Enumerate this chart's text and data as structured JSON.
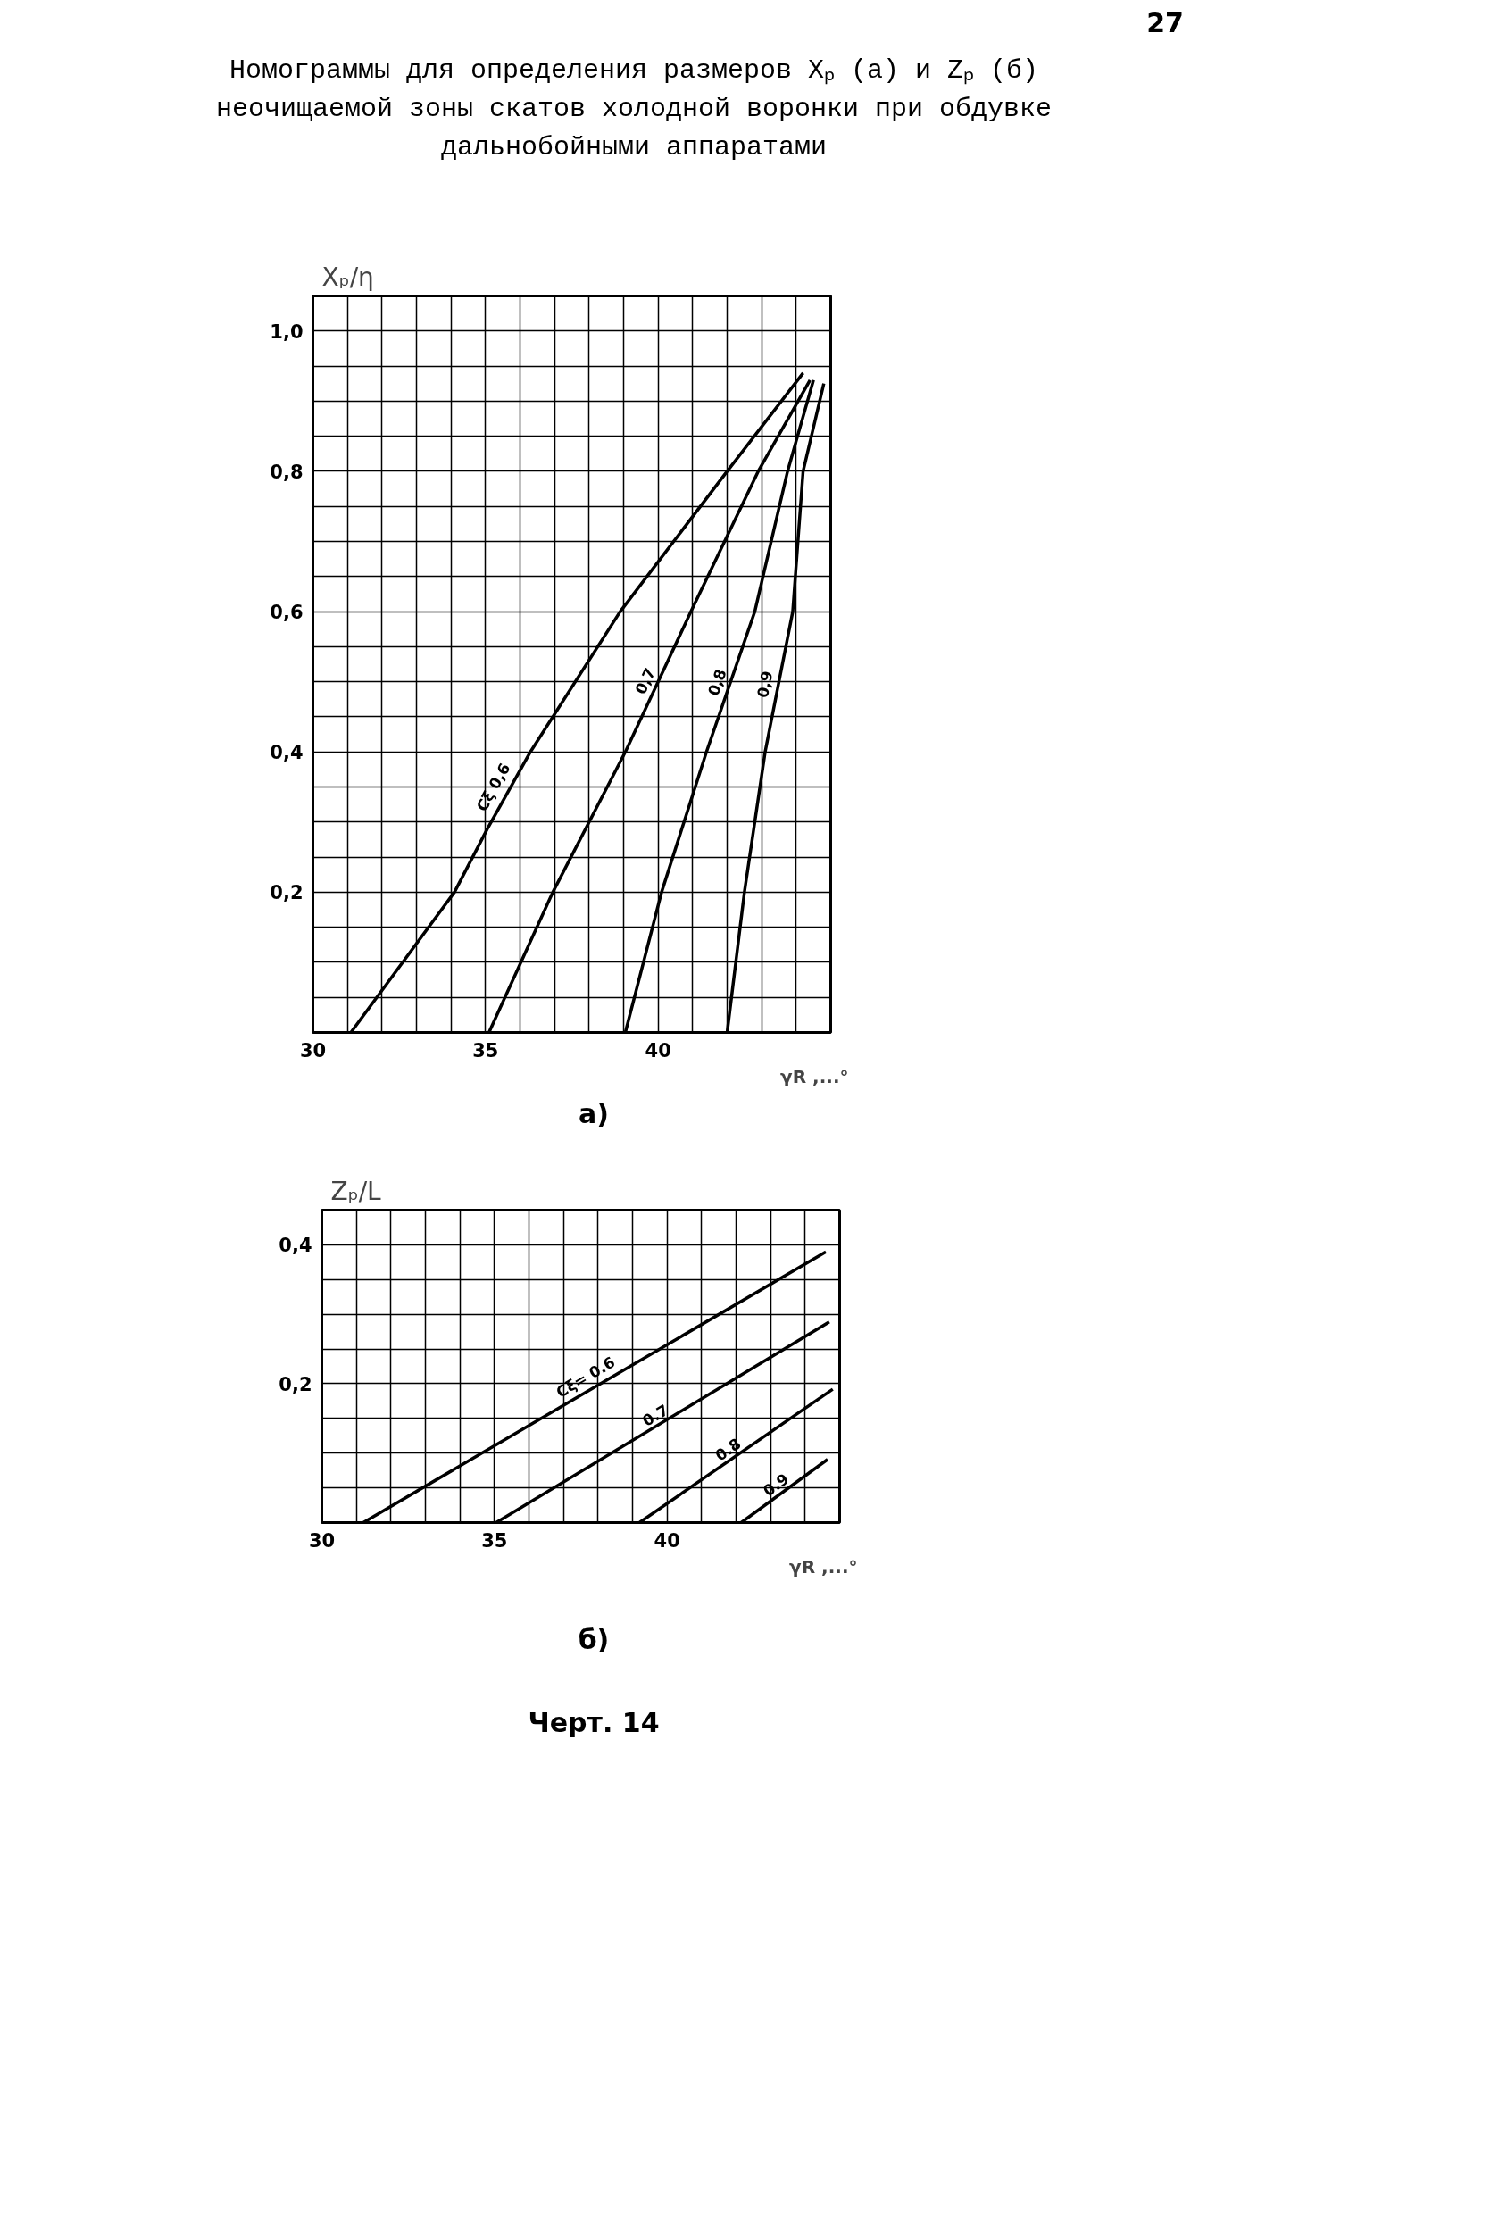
{
  "chart_data": [
    {
      "type": "line",
      "title": "Номограммы для определения размеров Xₚ (а) и Zₚ (б)\nнеочищаемой зоны скатов холодной воронки при обдувке\nдальнобойными аппаратами",
      "xlabel": "γR ,...°",
      "ylabel": "Xₚ/η",
      "annotations": [
        "27",
        "а)"
      ],
      "xlim": [
        30,
        45
      ],
      "ylim": [
        0,
        1.05
      ],
      "xticks": [
        30,
        {
          "value": 31,
          "label": null
        },
        {
          "value": 32,
          "label": null
        },
        {
          "value": 33,
          "label": null
        },
        {
          "value": 34,
          "label": null
        },
        35,
        {
          "value": 36,
          "label": null
        },
        {
          "value": 37,
          "label": null
        },
        {
          "value": 38,
          "label": null
        },
        {
          "value": 39,
          "label": null
        },
        40,
        {
          "value": 41,
          "label": null
        },
        {
          "value": 42,
          "label": null
        },
        {
          "value": 43,
          "label": null
        },
        {
          "value": 44,
          "label": null
        },
        {
          "value": 45,
          "label": null
        }
      ],
      "yticks": [
        {
          "value": 0,
          "label": null
        },
        {
          "value": 0.05,
          "label": null
        },
        {
          "value": 0.1,
          "label": null
        },
        {
          "value": 0.15,
          "label": null
        },
        {
          "value": 0.2,
          "label": "0,2"
        },
        {
          "value": 0.25,
          "label": null
        },
        {
          "value": 0.3,
          "label": null
        },
        {
          "value": 0.35,
          "label": null
        },
        {
          "value": 0.4,
          "label": "0,4"
        },
        {
          "value": 0.45,
          "label": null
        },
        {
          "value": 0.5,
          "label": null
        },
        {
          "value": 0.55,
          "label": null
        },
        {
          "value": 0.6,
          "label": "0,6"
        },
        {
          "value": 0.65,
          "label": null
        },
        {
          "value": 0.7,
          "label": null
        },
        {
          "value": 0.75,
          "label": null
        },
        {
          "value": 0.8,
          "label": "0,8"
        },
        {
          "value": 0.85,
          "label": null
        },
        {
          "value": 0.9,
          "label": null
        },
        {
          "value": 0.95,
          "label": null
        },
        {
          "value": 1.0,
          "label": "1,0"
        },
        {
          "value": 1.05,
          "label": null
        }
      ],
      "grid": true,
      "line_style": "solid",
      "marker": "none",
      "series": [
        {
          "name": "Cξ 0,6",
          "color": "#000000",
          "x": [
            31.1,
            34.1,
            35.05,
            36.3,
            38.9,
            42.0,
            44.2
          ],
          "values": [
            0,
            0.2,
            0.29,
            0.4,
            0.6,
            0.8,
            0.94
          ]
        },
        {
          "name": "0,7",
          "color": "#000000",
          "x": [
            35.1,
            36.95,
            39.05,
            40.95,
            42.9,
            44.4
          ],
          "values": [
            0,
            0.2,
            0.4,
            0.6,
            0.8,
            0.93
          ]
        },
        {
          "name": "0,8",
          "color": "#000000",
          "x": [
            39.05,
            40.1,
            41.4,
            42.8,
            43.75,
            44.5
          ],
          "values": [
            0,
            0.2,
            0.4,
            0.6,
            0.8,
            0.93
          ]
        },
        {
          "name": "0,9",
          "color": "#000000",
          "x": [
            42.0,
            42.5,
            43.1,
            43.9,
            44.2,
            44.8
          ],
          "values": [
            0,
            0.2,
            0.4,
            0.6,
            0.8,
            0.925
          ]
        }
      ]
    },
    {
      "type": "line",
      "xlabel": "γR ,...°",
      "ylabel": "Zₚ/L",
      "annotations": [
        "б)",
        "Черт. 14"
      ],
      "xlim": [
        30,
        45
      ],
      "ylim": [
        0,
        0.45
      ],
      "xticks": [
        30,
        {
          "value": 31,
          "label": null
        },
        {
          "value": 32,
          "label": null
        },
        {
          "value": 33,
          "label": null
        },
        {
          "value": 34,
          "label": null
        },
        35,
        {
          "value": 36,
          "label": null
        },
        {
          "value": 37,
          "label": null
        },
        {
          "value": 38,
          "label": null
        },
        {
          "value": 39,
          "label": null
        },
        40,
        {
          "value": 41,
          "label": null
        },
        {
          "value": 42,
          "label": null
        },
        {
          "value": 43,
          "label": null
        },
        {
          "value": 44,
          "label": null
        },
        {
          "value": 45,
          "label": null
        }
      ],
      "yticks": [
        {
          "value": 0,
          "label": null
        },
        {
          "value": 0.05,
          "label": null
        },
        {
          "value": 0.1,
          "label": null
        },
        {
          "value": 0.15,
          "label": null
        },
        {
          "value": 0.2,
          "label": "0,2"
        },
        {
          "value": 0.25,
          "label": null
        },
        {
          "value": 0.3,
          "label": null
        },
        {
          "value": 0.35,
          "label": null
        },
        {
          "value": 0.4,
          "label": "0,4"
        },
        {
          "value": 0.45,
          "label": null
        }
      ],
      "grid": true,
      "line_style": "solid",
      "marker": "none",
      "series": [
        {
          "name": "Cξ= 0.6",
          "color": "#000000",
          "x": [
            31.2,
            44.6
          ],
          "values": [
            0,
            0.39
          ]
        },
        {
          "name": "0.7",
          "color": "#000000",
          "x": [
            35.05,
            44.7
          ],
          "values": [
            0,
            0.289
          ]
        },
        {
          "name": "0.8",
          "color": "#000000",
          "x": [
            39.2,
            44.8
          ],
          "values": [
            0,
            0.192
          ]
        },
        {
          "name": "0.9",
          "color": "#000000",
          "x": [
            42.15,
            44.65
          ],
          "values": [
            0,
            0.091
          ]
        }
      ]
    }
  ]
}
